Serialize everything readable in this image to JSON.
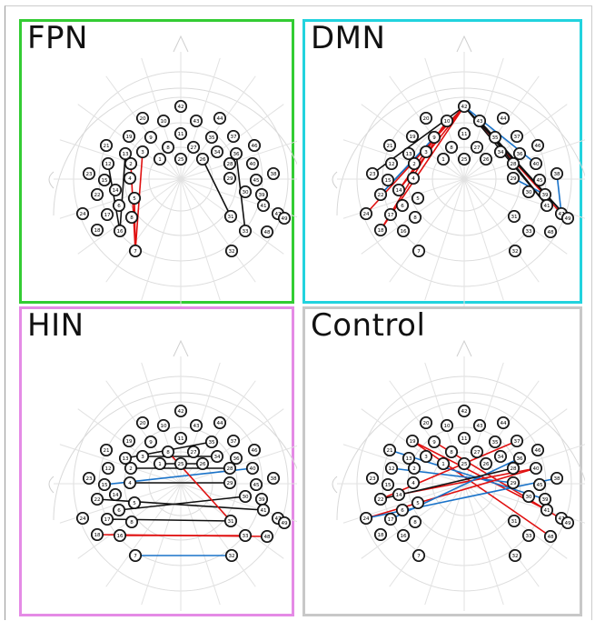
{
  "panels": [
    {
      "id": "fpn",
      "title": "FPN",
      "border_color": "#33cc33",
      "connections": [
        {
          "from": "3",
          "to": "7",
          "color": "red"
        },
        {
          "from": "2",
          "to": "7",
          "color": "red"
        },
        {
          "from": "5",
          "to": "7",
          "color": "red"
        },
        {
          "from": "12",
          "to": "16",
          "color": "black"
        },
        {
          "from": "13",
          "to": "16",
          "color": "black"
        },
        {
          "from": "36",
          "to": "33",
          "color": "black"
        },
        {
          "from": "26",
          "to": "31",
          "color": "black"
        }
      ]
    },
    {
      "id": "dmn",
      "title": "DMN",
      "border_color": "#22d3de",
      "connections": [
        {
          "from": "42",
          "to": "22",
          "color": "black"
        },
        {
          "from": "42",
          "to": "23",
          "color": "black"
        },
        {
          "from": "42",
          "to": "24",
          "color": "red"
        },
        {
          "from": "42",
          "to": "18",
          "color": "red"
        },
        {
          "from": "42",
          "to": "14",
          "color": "red"
        },
        {
          "from": "10",
          "to": "18",
          "color": "red"
        },
        {
          "from": "10",
          "to": "14",
          "color": "red"
        },
        {
          "from": "9",
          "to": "22",
          "color": "blue"
        },
        {
          "from": "42",
          "to": "47",
          "color": "red"
        },
        {
          "from": "42",
          "to": "49",
          "color": "black"
        },
        {
          "from": "42",
          "to": "41",
          "color": "black"
        },
        {
          "from": "42",
          "to": "40",
          "color": "blue"
        },
        {
          "from": "43",
          "to": "49",
          "color": "black"
        },
        {
          "from": "43",
          "to": "41",
          "color": "black"
        },
        {
          "from": "38",
          "to": "47",
          "color": "blue"
        },
        {
          "from": "29",
          "to": "39",
          "color": "blue"
        }
      ]
    },
    {
      "id": "hin",
      "title": "HIN",
      "border_color": "#e58be6",
      "connections": [
        {
          "from": "3",
          "to": "34",
          "color": "black"
        },
        {
          "from": "13",
          "to": "35",
          "color": "black"
        },
        {
          "from": "1",
          "to": "26",
          "color": "black"
        },
        {
          "from": "15",
          "to": "40",
          "color": "blue"
        },
        {
          "from": "2",
          "to": "28",
          "color": "black"
        },
        {
          "from": "4",
          "to": "29",
          "color": "black"
        },
        {
          "from": "22",
          "to": "41",
          "color": "black"
        },
        {
          "from": "6",
          "to": "30",
          "color": "black"
        },
        {
          "from": "17",
          "to": "31",
          "color": "black"
        },
        {
          "from": "8",
          "to": "31",
          "color": "red"
        },
        {
          "from": "16",
          "to": "33",
          "color": "red"
        },
        {
          "from": "18",
          "to": "48",
          "color": "red"
        },
        {
          "from": "7",
          "to": "32",
          "color": "blue"
        }
      ]
    },
    {
      "id": "control",
      "title": "Control",
      "border_color": "#c8c8c8",
      "connections": [
        {
          "from": "19",
          "to": "48",
          "color": "red"
        },
        {
          "from": "19",
          "to": "41",
          "color": "red"
        },
        {
          "from": "9",
          "to": "49",
          "color": "red"
        },
        {
          "from": "21",
          "to": "39",
          "color": "blue"
        },
        {
          "from": "12",
          "to": "29",
          "color": "blue"
        },
        {
          "from": "14",
          "to": "40",
          "color": "red"
        },
        {
          "from": "22",
          "to": "37",
          "color": "red"
        },
        {
          "from": "24",
          "to": "40",
          "color": "red"
        },
        {
          "from": "24",
          "to": "38",
          "color": "blue"
        },
        {
          "from": "17",
          "to": "36",
          "color": "blue"
        },
        {
          "from": "22",
          "to": "28",
          "color": "black"
        }
      ]
    }
  ],
  "electrodes": [
    "1",
    "2",
    "3",
    "4",
    "5",
    "6",
    "7",
    "8",
    "9",
    "10",
    "11",
    "12",
    "13",
    "14",
    "15",
    "16",
    "17",
    "18",
    "19",
    "20",
    "21",
    "22",
    "23",
    "24",
    "25",
    "26",
    "27",
    "28",
    "29",
    "30",
    "31",
    "32",
    "33",
    "34",
    "35",
    "36",
    "37",
    "38",
    "39",
    "40",
    "41",
    "42",
    "43",
    "44",
    "45",
    "46",
    "47",
    "48",
    "49"
  ],
  "line_colors": {
    "red": "#e01010",
    "blue": "#1a73c9",
    "black": "#111111"
  }
}
